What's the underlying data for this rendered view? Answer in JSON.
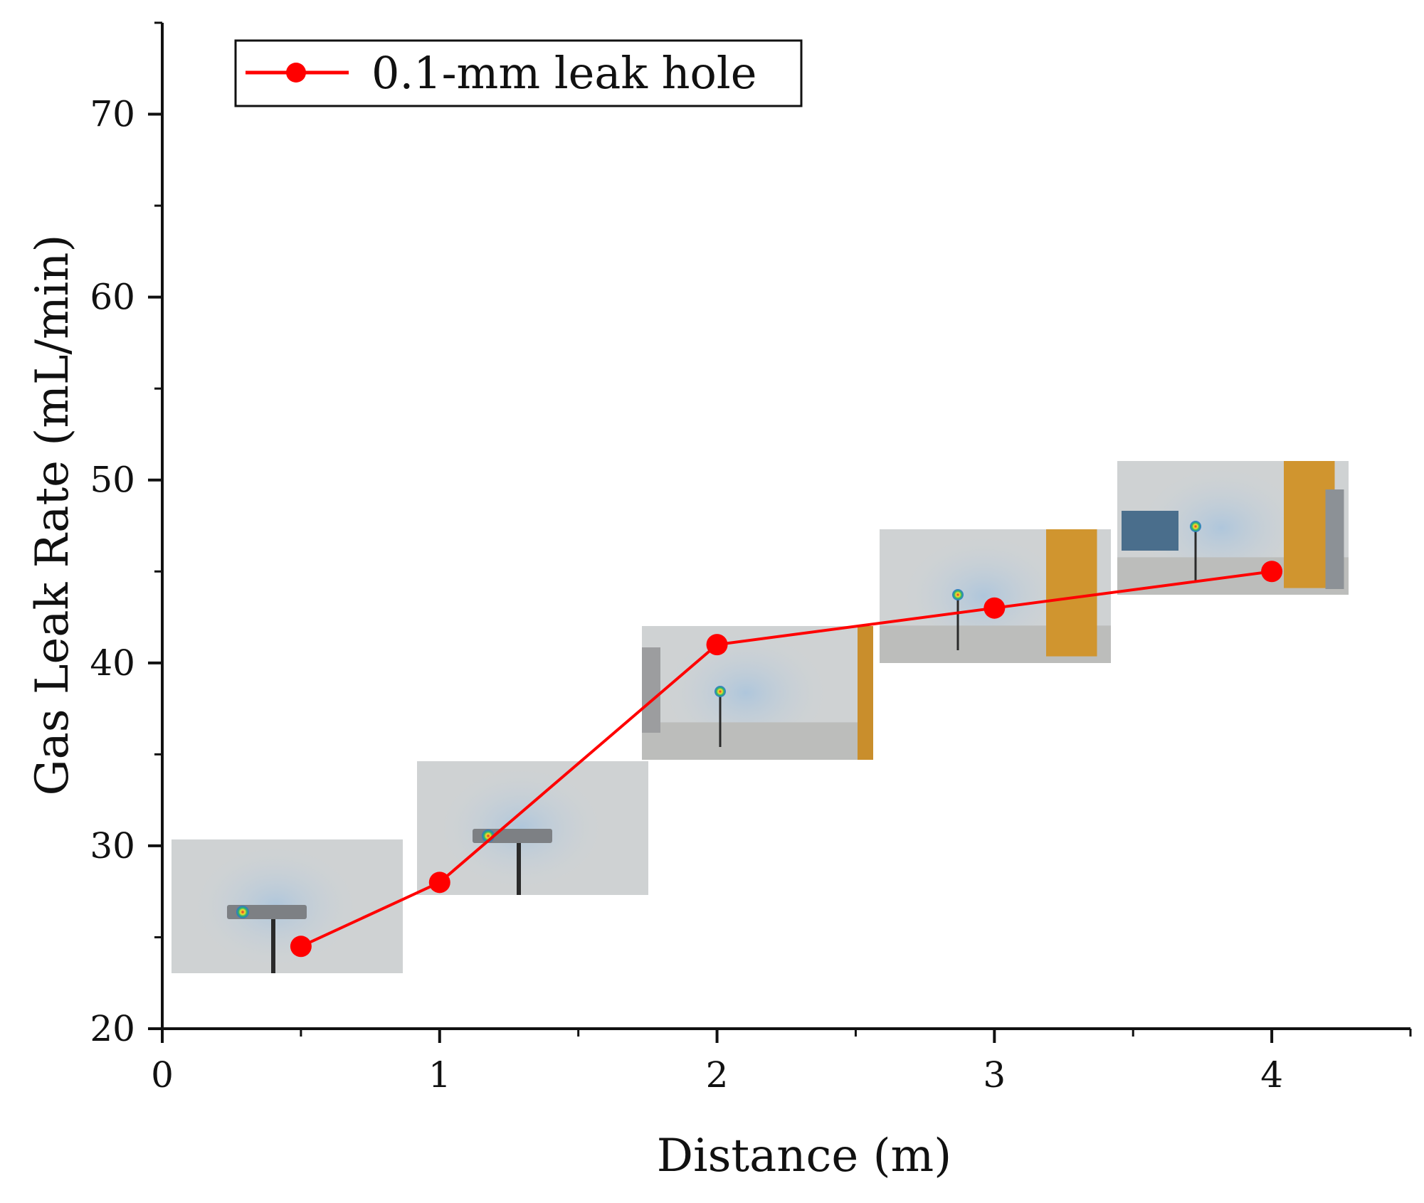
{
  "chart_data": {
    "type": "line",
    "xlabel": "Distance (m)",
    "ylabel": "Gas Leak Rate (mL/min)",
    "xlim": [
      0,
      4.5
    ],
    "ylim": [
      20,
      75
    ],
    "x_ticks": [
      0,
      1,
      2,
      3,
      4
    ],
    "y_ticks": [
      20,
      30,
      40,
      50,
      60,
      70
    ],
    "x_minor_step": 0.5,
    "y_minor_step": 5,
    "grid": false,
    "legend_position": "top-left",
    "series": [
      {
        "name": "0.1-mm leak hole",
        "color": "#ff0000",
        "marker": "circle",
        "x": [
          0.5,
          1,
          2,
          3,
          4
        ],
        "y": [
          24.5,
          28,
          41,
          43,
          45
        ]
      }
    ],
    "inset_images": [
      {
        "kind": "thermal-camera-photo",
        "at_distance_m": 0.5,
        "scene": "close-up-bracket"
      },
      {
        "kind": "thermal-camera-photo",
        "at_distance_m": 1,
        "scene": "bracket-on-stand"
      },
      {
        "kind": "thermal-camera-photo",
        "at_distance_m": 2,
        "scene": "stand-near-wall"
      },
      {
        "kind": "thermal-camera-photo",
        "at_distance_m": 3,
        "scene": "room-with-door"
      },
      {
        "kind": "thermal-camera-photo",
        "at_distance_m": 4,
        "scene": "lab-room-wide"
      }
    ]
  }
}
